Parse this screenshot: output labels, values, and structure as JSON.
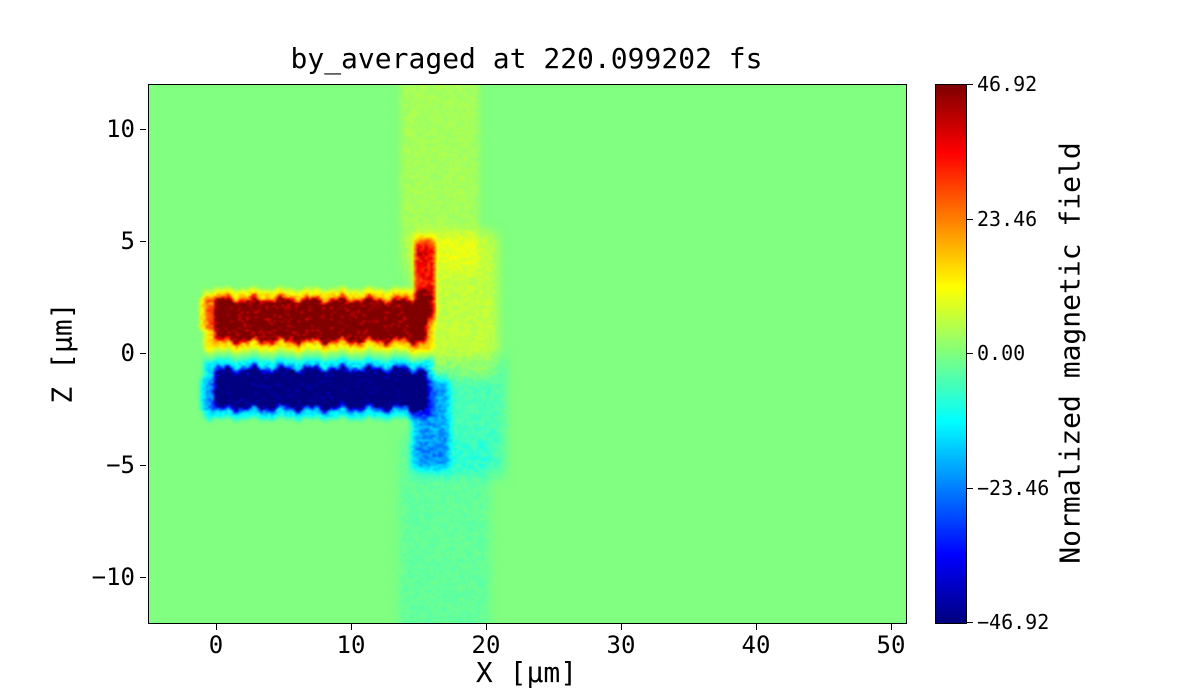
{
  "chart_data": {
    "type": "heatmap",
    "title": "by_averaged at 220.099202 fs",
    "xlabel": "X [μm]",
    "ylabel": "Z [μm]",
    "xlim": [
      -5,
      51
    ],
    "ylim": [
      -12,
      12
    ],
    "xticks": {
      "values": [
        0,
        10,
        20,
        30,
        40,
        50
      ],
      "labels": [
        "0",
        "10",
        "20",
        "30",
        "40",
        "50"
      ]
    },
    "yticks": {
      "values": [
        -10,
        -5,
        0,
        5,
        10
      ],
      "labels": [
        "−10",
        "−5",
        "0",
        "5",
        "10"
      ]
    },
    "colormap": "jet",
    "vmin": -46.92,
    "vmax": 46.92,
    "background_value": 0,
    "colorbar": {
      "label": "Normalized magnetic field",
      "tick_values": [
        46.92,
        23.46,
        0,
        -23.46,
        -46.92
      ],
      "tick_labels": [
        "46.92",
        "23.46",
        "0.00",
        "−23.46",
        "−46.92"
      ]
    },
    "features": [
      {
        "name": "upper-filament-core",
        "x0": 0.2,
        "x1": 15.2,
        "z0": 0.8,
        "z1": 2.2,
        "value": 40,
        "edge_x": 0.6,
        "edge_z": 0.45,
        "wiggle": 0.18,
        "noise": 14
      },
      {
        "name": "upper-filament-halo",
        "x0": -0.5,
        "x1": 15.6,
        "z0": 0.4,
        "z1": 2.6,
        "value": 14,
        "edge_x": 0.8,
        "edge_z": 0.5,
        "wiggle": 0.1,
        "noise": 4
      },
      {
        "name": "lower-filament-core",
        "x0": 0.2,
        "x1": 15.2,
        "z0": -2.2,
        "z1": -0.9,
        "value": -42,
        "edge_x": 0.6,
        "edge_z": 0.45,
        "wiggle": 0.18,
        "noise": 14
      },
      {
        "name": "lower-filament-halo",
        "x0": -0.5,
        "x1": 15.6,
        "z0": -2.6,
        "z1": -0.5,
        "value": -14,
        "edge_x": 0.8,
        "edge_z": 0.5,
        "wiggle": 0.1,
        "noise": 4
      },
      {
        "name": "vertical-jet-positive",
        "x0": 14.9,
        "x1": 15.9,
        "z0": 2.0,
        "z1": 4.6,
        "value": 28,
        "edge_x": 0.5,
        "edge_z": 0.9,
        "wiggle": 0,
        "noise": 6
      },
      {
        "name": "vertical-jet-negative",
        "x0": 14.9,
        "x1": 16.8,
        "z0": -4.6,
        "z1": -1.6,
        "value": -15,
        "edge_x": 0.9,
        "edge_z": 1.0,
        "wiggle": 0,
        "noise": 4
      },
      {
        "name": "forward-plume-positive",
        "x0": 15.2,
        "x1": 20.0,
        "z0": -0.5,
        "z1": 4.8,
        "value": 6,
        "edge_x": 1.5,
        "edge_z": 1.2,
        "wiggle": 0,
        "noise": 2
      },
      {
        "name": "forward-plume-negative",
        "x0": 15.5,
        "x1": 20.5,
        "z0": -4.8,
        "z1": -0.8,
        "value": -5,
        "edge_x": 1.6,
        "edge_z": 1.2,
        "wiggle": 0,
        "noise": 2
      },
      {
        "name": "upper-wisp",
        "x0": 14.2,
        "x1": 18.8,
        "z0": 4.5,
        "z1": 11.8,
        "value": 3.5,
        "edge_x": 1.2,
        "edge_z": 1.5,
        "wiggle": 0,
        "noise": 1.5
      },
      {
        "name": "lower-wisp",
        "x0": 14.2,
        "x1": 19.5,
        "z0": -11.8,
        "z1": -4.5,
        "value": -2.5,
        "edge_x": 1.4,
        "edge_z": 1.5,
        "wiggle": 0,
        "noise": 1.5
      },
      {
        "name": "left-edge-positive-spot",
        "x0": -1.0,
        "x1": 0.4,
        "z0": 1.3,
        "z1": 2.3,
        "value": 12,
        "edge_x": 0.5,
        "edge_z": 0.4,
        "wiggle": 0,
        "noise": 4
      },
      {
        "name": "left-edge-negative-spot",
        "x0": -1.0,
        "x1": 0.4,
        "z0": -2.3,
        "z1": -1.3,
        "value": -9,
        "edge_x": 0.5,
        "edge_z": 0.4,
        "wiggle": 0,
        "noise": 3
      }
    ]
  }
}
